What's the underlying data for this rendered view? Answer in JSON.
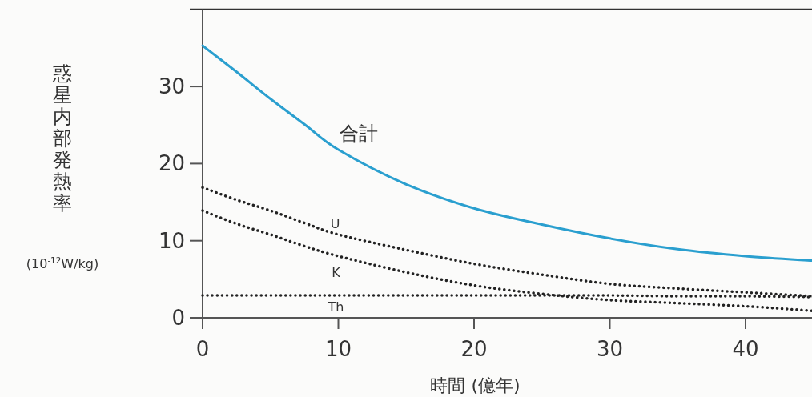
{
  "chart_data": {
    "type": "line",
    "ylabel": "惑星内部発熱率",
    "xlabel": "時間 (億年)",
    "annotations": [
      "(10$^{-12}$W/kg)"
    ],
    "xlim": [
      0,
      45
    ],
    "ylim": [
      0,
      40
    ],
    "xticks": [
      0,
      10,
      20,
      30,
      40
    ],
    "yticks": [
      0,
      10,
      20,
      30
    ],
    "x": [
      0,
      2.5,
      5,
      7.5,
      10,
      15,
      20,
      25,
      30,
      35,
      40,
      45
    ],
    "series": [
      {
        "name": "合計",
        "color": "#2a9fcf",
        "line_style": "solid",
        "values": [
          35.3,
          31.9,
          28.4,
          25.1,
          21.8,
          17.3,
          14.2,
          12.1,
          10.3,
          8.9,
          8.0,
          7.4
        ]
      },
      {
        "name": "U",
        "color": "#222222",
        "line_style": "dotted",
        "values": [
          16.9,
          15.3,
          13.9,
          12.3,
          10.8,
          8.8,
          7.0,
          5.6,
          4.4,
          3.8,
          3.3,
          2.8
        ]
      },
      {
        "name": "K",
        "color": "#222222",
        "line_style": "dotted",
        "values": [
          13.9,
          12.2,
          10.8,
          9.3,
          8.0,
          5.9,
          4.2,
          3.1,
          2.3,
          1.9,
          1.5,
          0.9
        ]
      },
      {
        "name": "Th",
        "color": "#222222",
        "line_style": "dotted",
        "values": [
          2.9,
          2.9,
          2.9,
          2.9,
          2.9,
          2.9,
          2.9,
          2.9,
          2.9,
          2.8,
          2.8,
          2.7
        ]
      }
    ]
  }
}
